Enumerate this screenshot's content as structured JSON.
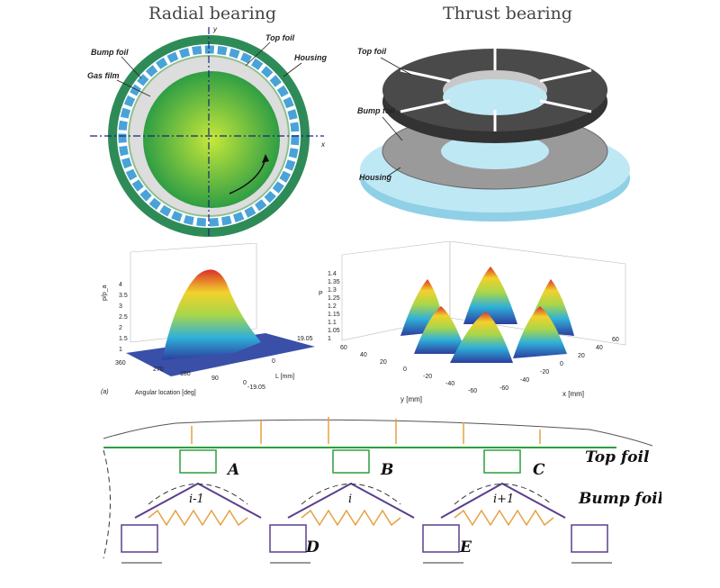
{
  "radial": {
    "title": "Radial bearing",
    "labels": {
      "bump_foil": "Bump foil",
      "top_foil": "Top foil",
      "gas_film": "Gas film",
      "housing": "Housing",
      "axis_y": "y",
      "axis_x": "x"
    }
  },
  "thrust": {
    "title": "Thrust bearing",
    "labels": {
      "top_foil": "Top foil",
      "bump_foil": "Bump foil",
      "housing": "Housing"
    }
  },
  "plot_left": {
    "zlabel": "p/p_a",
    "z_ticks": [
      "4",
      "3.5",
      "3",
      "2.5",
      "2",
      "1.5",
      "1"
    ],
    "x_label": "Angular location [deg]",
    "x_ticks": [
      "360",
      "270",
      "180",
      "90",
      "0"
    ],
    "y_label": "L [mm]",
    "y_ticks": [
      "-19.05",
      "0",
      "19.05"
    ],
    "panel_tag": "(a)"
  },
  "plot_right": {
    "zlabel": "P",
    "z_ticks": [
      "1.4",
      "1.35",
      "1.3",
      "1.25",
      "1.2",
      "1.15",
      "1.1",
      "1.05",
      "1"
    ],
    "y_label": "y [mm]",
    "y_ticks": [
      "60",
      "40",
      "20",
      "0",
      "-20",
      "-40",
      "-60"
    ],
    "x_label": "x [mm]",
    "x_ticks": [
      "-60",
      "-40",
      "-20",
      "0",
      "20",
      "40",
      "60"
    ]
  },
  "model": {
    "top_foil": "Top foil",
    "bump_foil": "Bump foil",
    "nodes_top": [
      "A",
      "B",
      "C"
    ],
    "nodes_bottom": [
      "D",
      "E"
    ],
    "bump_labels": [
      "i-1",
      "i",
      "i+1"
    ]
  },
  "colors": {
    "housing_green": "#2e8b57",
    "bump_blue": "#4aa3d8",
    "shaft_green": "#3cb54a",
    "top_foil_dark": "#555555",
    "housing_cyan": "#a9dff0",
    "spring_orange": "#e8a040",
    "foil_green": "#2e9e3e",
    "purple": "#5a3e8e"
  }
}
